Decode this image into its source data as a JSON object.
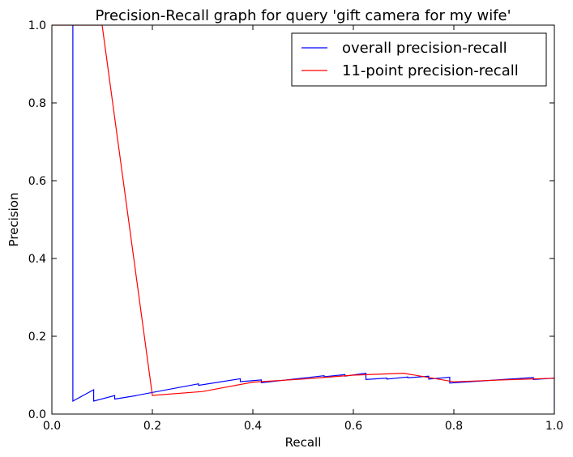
{
  "chart_data": {
    "type": "line",
    "title": "Precision-Recall graph for query 'gift camera for my wife'",
    "xlabel": "Recall",
    "ylabel": "Precision",
    "xlim": [
      0.0,
      1.0
    ],
    "ylim": [
      0.0,
      1.0
    ],
    "xticks": [
      0.0,
      0.2,
      0.4,
      0.6,
      0.8,
      1.0
    ],
    "yticks": [
      0.0,
      0.2,
      0.4,
      0.6,
      0.8,
      1.0
    ],
    "xtick_labels": [
      "0.0",
      "0.2",
      "0.4",
      "0.6",
      "0.8",
      "1.0"
    ],
    "ytick_labels": [
      "0.0",
      "0.2",
      "0.4",
      "0.6",
      "0.8",
      "1.0"
    ],
    "grid": false,
    "legend_position": "top-right",
    "series": [
      {
        "name": "overall precision-recall",
        "color": "#0000ff",
        "x": [
          0.0417,
          0.0417,
          0.0417,
          0.0833,
          0.0833,
          0.125,
          0.125,
          0.1667,
          0.1667,
          0.2917,
          0.2917,
          0.375,
          0.375,
          0.4167,
          0.4167,
          0.5417,
          0.5417,
          0.5833,
          0.5833,
          0.625,
          0.625,
          0.6667,
          0.6667,
          0.7083,
          0.7083,
          0.75,
          0.75,
          0.7917,
          0.7917,
          0.9583,
          0.9583,
          1.0,
          1.0
        ],
        "y": [
          1.0,
          0.0333,
          0.0333,
          0.0625,
          0.0333,
          0.0476,
          0.0385,
          0.0471,
          0.0476,
          0.0778,
          0.0737,
          0.0909,
          0.0833,
          0.0877,
          0.0806,
          0.0985,
          0.0958,
          0.1014,
          0.0974,
          0.1049,
          0.0888,
          0.0925,
          0.0899,
          0.0953,
          0.0933,
          0.0973,
          0.0897,
          0.0948,
          0.0797,
          0.094,
          0.0888,
          0.0925,
          0.0
        ]
      },
      {
        "name": "11-point precision-recall",
        "color": "#ff0000",
        "x": [
          0.0,
          0.1,
          0.2,
          0.3,
          0.4,
          0.5,
          0.6,
          0.7,
          0.8,
          0.9,
          1.0
        ],
        "y": [
          1.0,
          1.0,
          0.048,
          0.058,
          0.082,
          0.09,
          0.1,
          0.105,
          0.083,
          0.088,
          0.092
        ]
      }
    ]
  }
}
